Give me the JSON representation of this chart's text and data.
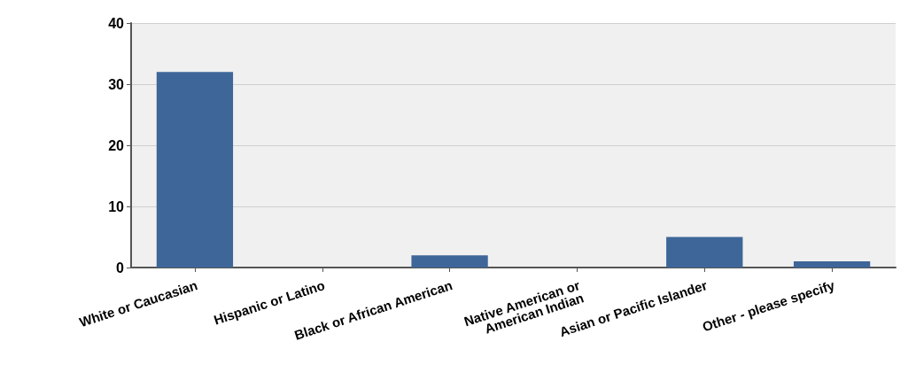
{
  "chart_data": {
    "type": "bar",
    "categories": [
      "White or Caucasian",
      "Hispanic or Latino",
      "Black or African American",
      "Native American or\nAmerican Indian",
      "Asian or Pacific Islander",
      "Other - please specify"
    ],
    "values": [
      32,
      0,
      2,
      0,
      5,
      1
    ],
    "color": "#3e6699",
    "ylim": [
      0,
      40
    ],
    "yticks": [
      0,
      10,
      20,
      30,
      40
    ],
    "grid": "y"
  }
}
